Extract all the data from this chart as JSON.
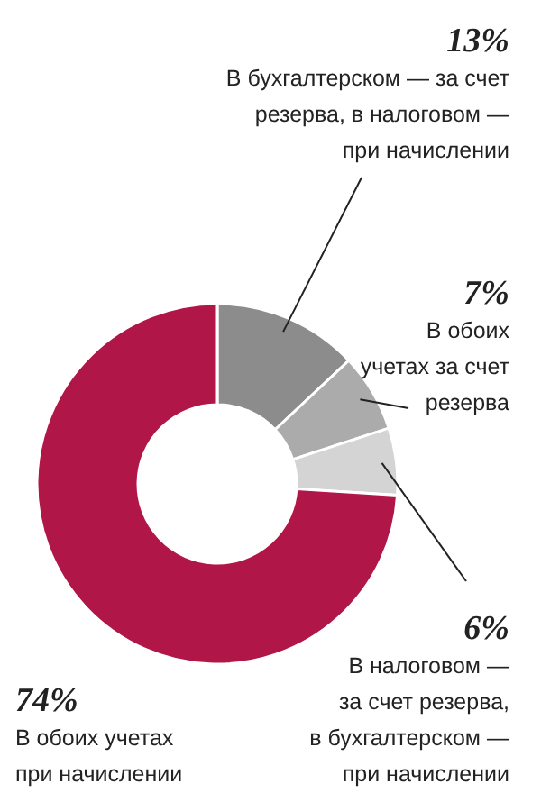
{
  "chart_data": {
    "type": "donut",
    "categories": [
      "В бухгалтерском — за счет\nрезерва, в налоговом —\nпри начислении",
      "В обоих\nучетах за счет\nрезерва",
      "В налоговом —\nза счет резерва,\nв бухгалтерском —\nпри начислении",
      "В обоих учетах\nпри начислении"
    ],
    "values": [
      13,
      7,
      6,
      74
    ],
    "colors": [
      "#8c8c8c",
      "#ababab",
      "#d4d4d4",
      "#b01648"
    ],
    "value_labels": [
      "13%",
      "7%",
      "6%",
      "74%"
    ]
  }
}
